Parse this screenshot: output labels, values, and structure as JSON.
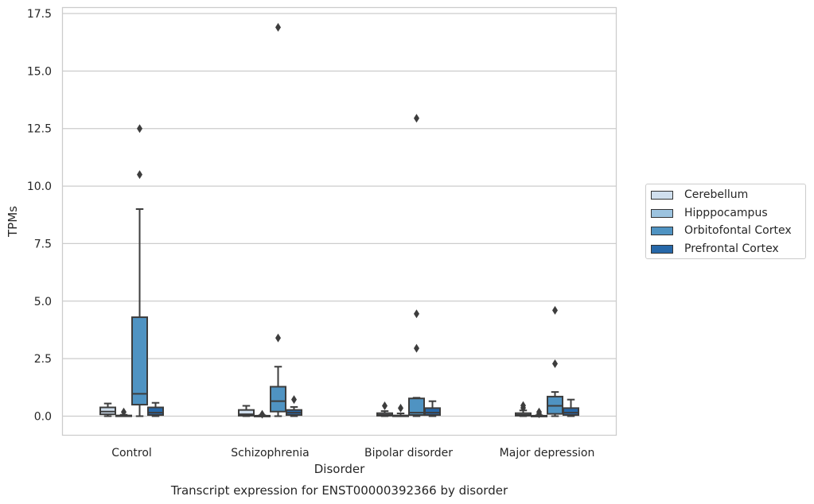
{
  "chart_data": {
    "type": "box",
    "title": "",
    "caption": "Transcript expression for ENST00000392366 by disorder",
    "xlabel": "Disorder",
    "ylabel": "TPMs",
    "ylim": [
      -0.8,
      17.6
    ],
    "yticks": [
      "0.0",
      "2.5",
      "5.0",
      "7.5",
      "10.0",
      "12.5",
      "15.0",
      "17.5"
    ],
    "ytick_values": [
      0,
      2.5,
      5,
      7.5,
      10,
      12.5,
      15,
      17.5
    ],
    "grid": "horizontal",
    "legend_position": "right",
    "categories": [
      "Control",
      "Schizophrenia",
      "Bipolar disorder",
      "Major depression"
    ],
    "series": [
      {
        "name": "Cerebellum",
        "color": "#d0dfee",
        "boxes": [
          {
            "whislo": 0.0,
            "q1": 0.08,
            "med": 0.2,
            "q3": 0.38,
            "whishi": 0.55,
            "fliers": []
          },
          {
            "whislo": 0.0,
            "q1": 0.02,
            "med": 0.08,
            "q3": 0.27,
            "whishi": 0.45,
            "fliers": []
          },
          {
            "whislo": 0.0,
            "q1": 0.02,
            "med": 0.06,
            "q3": 0.13,
            "whishi": 0.22,
            "fliers": [
              0.45
            ]
          },
          {
            "whislo": 0.0,
            "q1": 0.02,
            "med": 0.06,
            "q3": 0.13,
            "whishi": 0.25,
            "fliers": [
              0.36,
              0.46
            ]
          }
        ]
      },
      {
        "name": "Hipppocampus",
        "color": "#9cc3df",
        "boxes": [
          {
            "whislo": 0.0,
            "q1": 0.0,
            "med": 0.01,
            "q3": 0.03,
            "whishi": 0.06,
            "fliers": [
              0.18
            ]
          },
          {
            "whislo": 0.0,
            "q1": 0.0,
            "med": 0.01,
            "q3": 0.02,
            "whishi": 0.04,
            "fliers": [
              0.08
            ]
          },
          {
            "whislo": 0.0,
            "q1": 0.0,
            "med": 0.01,
            "q3": 0.03,
            "whishi": 0.12,
            "fliers": [
              0.35
            ]
          },
          {
            "whislo": 0.0,
            "q1": 0.0,
            "med": 0.01,
            "q3": 0.02,
            "whishi": 0.04,
            "fliers": [
              0.1,
              0.18
            ]
          }
        ]
      },
      {
        "name": "Orbitofontal Cortex",
        "color": "#4f93c2",
        "boxes": [
          {
            "whislo": 0.0,
            "q1": 0.5,
            "med": 0.97,
            "q3": 4.3,
            "whishi": 9.0,
            "fliers": [
              10.5,
              12.5
            ]
          },
          {
            "whislo": 0.0,
            "q1": 0.2,
            "med": 0.65,
            "q3": 1.28,
            "whishi": 2.15,
            "fliers": [
              3.4,
              16.9
            ]
          },
          {
            "whislo": 0.0,
            "q1": 0.05,
            "med": 0.15,
            "q3": 0.77,
            "whishi": 0.8,
            "fliers": [
              2.95,
              4.45,
              12.95
            ]
          },
          {
            "whislo": 0.0,
            "q1": 0.1,
            "med": 0.45,
            "q3": 0.85,
            "whishi": 1.05,
            "fliers": [
              2.28,
              4.6
            ]
          }
        ]
      },
      {
        "name": "Prefrontal Cortex",
        "color": "#2768a9",
        "boxes": [
          {
            "whislo": 0.0,
            "q1": 0.05,
            "med": 0.15,
            "q3": 0.38,
            "whishi": 0.58,
            "fliers": []
          },
          {
            "whislo": 0.0,
            "q1": 0.05,
            "med": 0.15,
            "q3": 0.27,
            "whishi": 0.4,
            "fliers": [
              0.72
            ]
          },
          {
            "whislo": 0.0,
            "q1": 0.05,
            "med": 0.15,
            "q3": 0.35,
            "whishi": 0.65,
            "fliers": []
          },
          {
            "whislo": 0.0,
            "q1": 0.05,
            "med": 0.15,
            "q3": 0.35,
            "whishi": 0.72,
            "fliers": []
          }
        ]
      }
    ]
  }
}
